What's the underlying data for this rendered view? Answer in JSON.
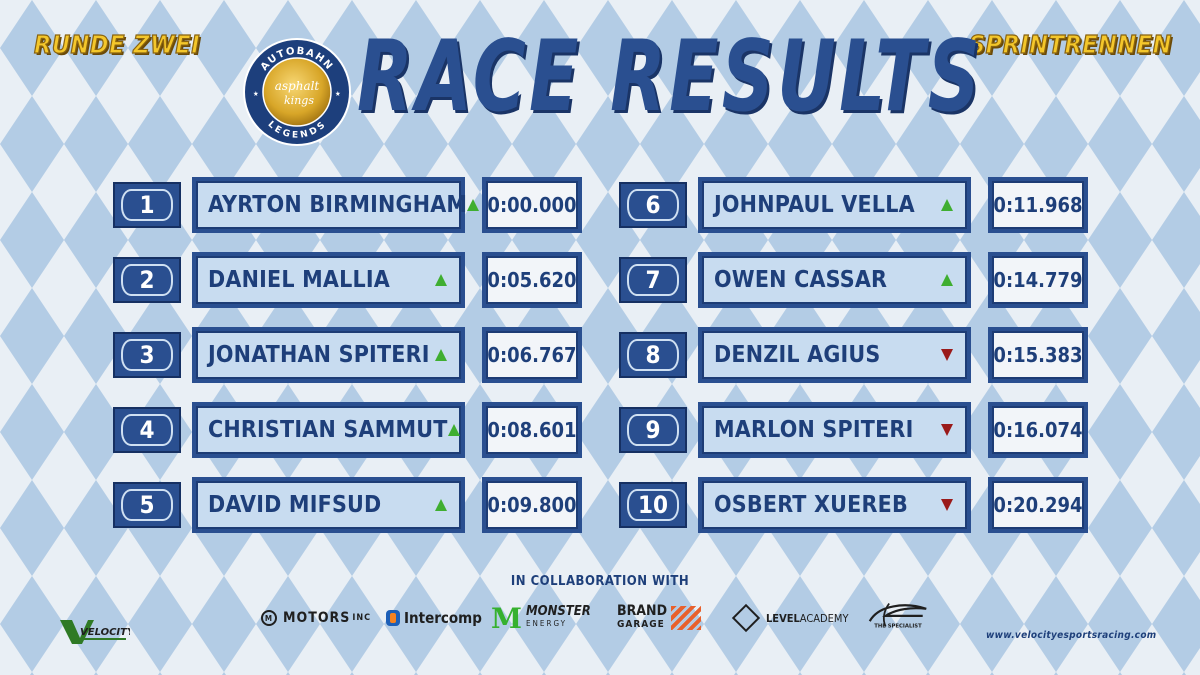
{
  "header": {
    "round_label": "RUNDE ZWEI",
    "race_type": "SPRINTRENNEN",
    "title": "RACE RESULTS"
  },
  "logo": {
    "top_text": "AUTOBAHN",
    "center_text_1": "asphalt",
    "center_text_2": "kings",
    "bottom_text": "LEGENDS"
  },
  "results": [
    {
      "position": "1",
      "driver": "AYRTON BIRMINGHAM",
      "trend": "up",
      "time": "0:00.000"
    },
    {
      "position": "2",
      "driver": "DANIEL MALLIA",
      "trend": "up",
      "time": "0:05.620"
    },
    {
      "position": "3",
      "driver": "JONATHAN SPITERI",
      "trend": "up",
      "time": "0:06.767"
    },
    {
      "position": "4",
      "driver": "CHRISTIAN SAMMUT",
      "trend": "up",
      "time": "0:08.601"
    },
    {
      "position": "5",
      "driver": "DAVID MIFSUD",
      "trend": "up",
      "time": "0:09.800"
    },
    {
      "position": "6",
      "driver": "JOHNPAUL VELLA",
      "trend": "up",
      "time": "0:11.968"
    },
    {
      "position": "7",
      "driver": "OWEN CASSAR",
      "trend": "up",
      "time": "0:14.779"
    },
    {
      "position": "8",
      "driver": "DENZIL AGIUS",
      "trend": "down",
      "time": "0:15.383"
    },
    {
      "position": "9",
      "driver": "MARLON SPITERI",
      "trend": "down",
      "time": "0:16.074"
    },
    {
      "position": "10",
      "driver": "OSBERT XUEREB",
      "trend": "down",
      "time": "0:20.294"
    }
  ],
  "footer": {
    "collab_label": "IN COLLABORATION WITH",
    "sponsors": {
      "motors": "MOTORS",
      "motors_suffix": "INC",
      "intercomp": "Intercomp",
      "monster_1": "MONSTER",
      "monster_2": "ENERGY",
      "brand_1": "BRAND",
      "brand_2": "GARAGE",
      "level_1": "LEVEL",
      "level_2": "ACADEMY",
      "specialist": "THE SPECIALIST"
    },
    "left_logo": "VELOCITY",
    "website": "www.velocityesportsracing.com"
  },
  "colors": {
    "navy": "#2a4f90",
    "light_blue": "#c8dcf0",
    "gold": "#f4c72b",
    "up_arrow": "#3fae31",
    "down_arrow": "#9a1a1a"
  }
}
